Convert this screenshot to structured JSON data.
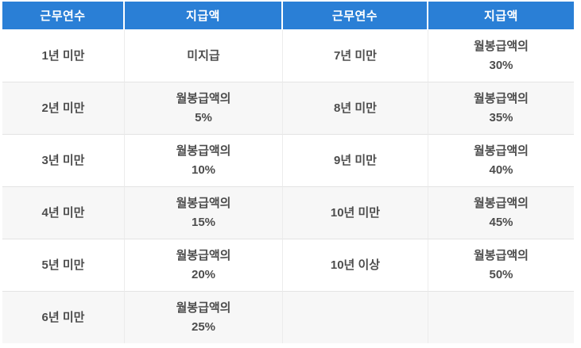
{
  "page": {
    "background_color": "#ffffff"
  },
  "table": {
    "header_bg_color": "#2a7fd6",
    "header_text_color": "#ffffff",
    "body_text_color": "#4d4d4d",
    "stripe_bg_color": "#f7f7f7",
    "row_border_color": "#e4e4e4",
    "col_border_color": "#ececec",
    "columns": [
      "근무연수",
      "지급액",
      "근무연수",
      "지급액"
    ],
    "rows": [
      {
        "cells": [
          [
            "1년 미만"
          ],
          [
            "미지급"
          ],
          [
            "7년 미만"
          ],
          [
            "월봉급액의",
            "30%"
          ]
        ]
      },
      {
        "cells": [
          [
            "2년 미만"
          ],
          [
            "월봉급액의",
            "5%"
          ],
          [
            "8년 미만"
          ],
          [
            "월봉급액의",
            "35%"
          ]
        ]
      },
      {
        "cells": [
          [
            "3년 미만"
          ],
          [
            "월봉급액의",
            "10%"
          ],
          [
            "9년 미만"
          ],
          [
            "월봉급액의",
            "40%"
          ]
        ]
      },
      {
        "cells": [
          [
            "4년 미만"
          ],
          [
            "월봉급액의",
            "15%"
          ],
          [
            "10년 미만"
          ],
          [
            "월봉급액의",
            "45%"
          ]
        ]
      },
      {
        "cells": [
          [
            "5년 미만"
          ],
          [
            "월봉급액의",
            "20%"
          ],
          [
            "10년 이상"
          ],
          [
            "월봉급액의",
            "50%"
          ]
        ]
      },
      {
        "cells": [
          [
            "6년 미만"
          ],
          [
            "월봉급액의",
            "25%"
          ],
          [
            ""
          ],
          [
            ""
          ]
        ]
      }
    ]
  },
  "chart_data": {
    "type": "table",
    "columns": [
      "근무연수",
      "지급액",
      "근무연수",
      "지급액"
    ],
    "rows": [
      [
        "1년 미만",
        "미지급",
        "7년 미만",
        "월봉급액의 30%"
      ],
      [
        "2년 미만",
        "월봉급액의 5%",
        "8년 미만",
        "월봉급액의 35%"
      ],
      [
        "3년 미만",
        "월봉급액의 10%",
        "9년 미만",
        "월봉급액의 40%"
      ],
      [
        "4년 미만",
        "월봉급액의 15%",
        "10년 미만",
        "월봉급액의 45%"
      ],
      [
        "5년 미만",
        "월봉급액의 20%",
        "10년 이상",
        "월봉급액의 50%"
      ],
      [
        "6년 미만",
        "월봉급액의 25%",
        "",
        ""
      ]
    ]
  }
}
